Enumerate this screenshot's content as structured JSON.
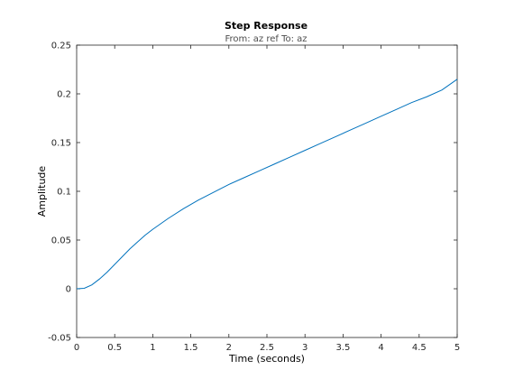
{
  "chart_data": {
    "type": "line",
    "title": "Step Response",
    "subtitle": "From: az ref  To: az",
    "xlabel": "Time (seconds)",
    "ylabel": "Amplitude",
    "xlim": [
      0,
      5
    ],
    "ylim": [
      -0.05,
      0.25
    ],
    "grid": false,
    "line_color": "#0072bd",
    "xticks": [
      0,
      0.5,
      1,
      1.5,
      2,
      2.5,
      3,
      3.5,
      4,
      4.5,
      5
    ],
    "xtick_labels": [
      "0",
      "0.5",
      "1",
      "1.5",
      "2",
      "2.5",
      "3",
      "3.5",
      "4",
      "4.5",
      "5"
    ],
    "yticks": [
      -0.05,
      0,
      0.05,
      0.1,
      0.15,
      0.2,
      0.25
    ],
    "ytick_labels": [
      "-0.05",
      "0",
      "0.05",
      "0.1",
      "0.15",
      "0.2",
      "0.25"
    ],
    "series": [
      {
        "x": [
          0,
          0.1,
          0.2,
          0.3,
          0.4,
          0.5,
          0.6,
          0.7,
          0.8,
          0.9,
          1.0,
          1.2,
          1.4,
          1.6,
          1.8,
          2.0,
          2.2,
          2.4,
          2.6,
          2.8,
          3.0,
          3.2,
          3.4,
          3.6,
          3.8,
          4.0,
          4.2,
          4.4,
          4.6,
          4.8,
          5.0
        ],
        "y": [
          0,
          0.0005,
          0.004,
          0.01,
          0.017,
          0.025,
          0.033,
          0.041,
          0.048,
          0.055,
          0.061,
          0.072,
          0.082,
          0.091,
          0.099,
          0.107,
          0.114,
          0.121,
          0.128,
          0.135,
          0.142,
          0.149,
          0.156,
          0.163,
          0.17,
          0.177,
          0.184,
          0.191,
          0.197,
          0.204,
          0.215
        ]
      }
    ]
  }
}
